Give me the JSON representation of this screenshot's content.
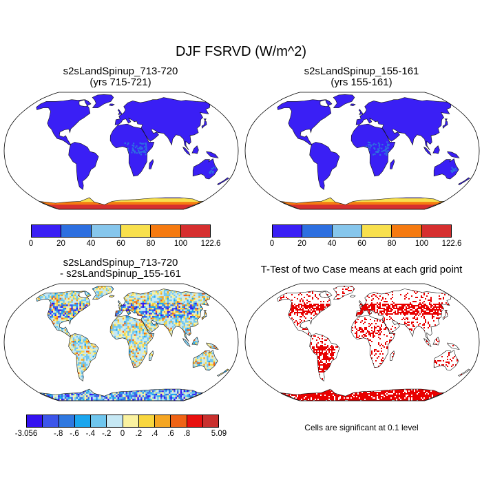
{
  "title": "DJF FSRVD (W/m^2)",
  "panels": {
    "top_left": {
      "title_line1": "s2sLandSpinup_713-720",
      "title_line2": "(yrs 715-721)"
    },
    "top_right": {
      "title_line1": "s2sLandSpinup_155-161",
      "title_line2": "(yrs 155-161)"
    },
    "bottom_left": {
      "title_line1": "s2sLandSpinup_713-720",
      "title_line2": "- s2sLandSpinup_155-161"
    },
    "bottom_right": {
      "title": "T-Test of two Case means at each grid point",
      "note": "Cells are significant at 0.1 level"
    }
  },
  "colorbar_abs": {
    "labels": [
      "0",
      "20",
      "40",
      "60",
      "80",
      "100",
      "122.6"
    ],
    "colors": [
      "#3a1ff5",
      "#2d6fe0",
      "#86c6ec",
      "#f8e04d",
      "#f57a10",
      "#d62f2f"
    ]
  },
  "colorbar_diff": {
    "labels": [
      "-3.056",
      "-.8",
      "-.6",
      "-.4",
      "-.2",
      "0",
      ".2",
      ".4",
      ".6",
      ".8",
      "5.09"
    ],
    "colors": [
      "#3412f0",
      "#3c55ea",
      "#2f78e0",
      "#1ba6ee",
      "#6fc6ee",
      "#c6e8f4",
      "#faf2a0",
      "#f8d63e",
      "#f5a623",
      "#ef6315",
      "#e8100e",
      "#c9302e"
    ]
  },
  "colors": {
    "ocean": "#ffffff",
    "land_abs": "#3a1ff5",
    "antarctica_abs": [
      "#f8e04d",
      "#f57a10",
      "#d62f2f"
    ],
    "significant": "#e80000",
    "coast": "#111111"
  },
  "map_projection": "robinson"
}
